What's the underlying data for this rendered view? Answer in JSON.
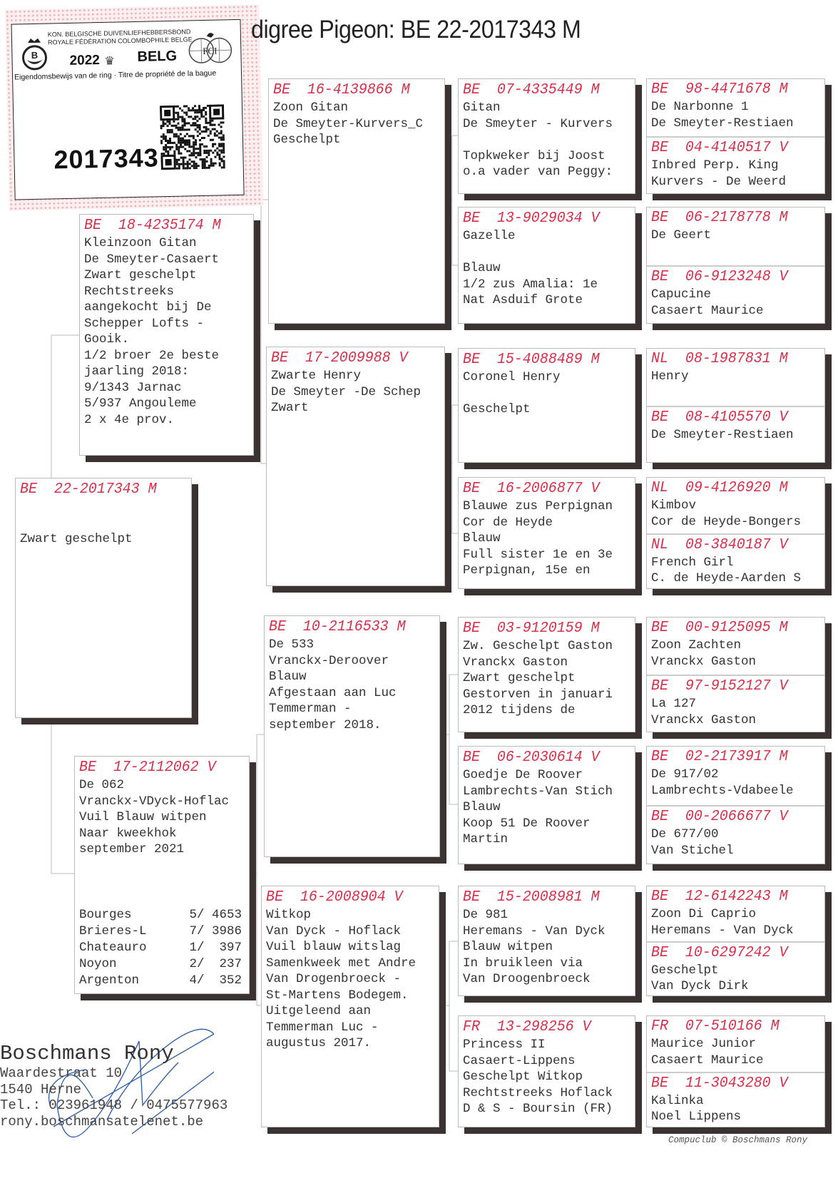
{
  "ring_card": {
    "org_line1": "KON. BELGISCHE DUIVENLIEFHEBBERSBOND",
    "org_line2": "ROYALE FÉDÉRATION COLOMBOPHILE BELGE",
    "year": "2022",
    "country": "BELG",
    "ownership": "Eigendomsbewijs van de ring · Titre de propriété de la bague",
    "ring_number": "2017343",
    "logo_left": "B",
    "logo_right": "FCI"
  },
  "title": "digree Pigeon: BE  22-2017343 M",
  "colors": {
    "ring": "#d6304a",
    "shadow": "#3b3232",
    "signature": "#2a5aa8"
  },
  "subject": {
    "ring": "BE  22-2017343 M",
    "lines": [
      "",
      "",
      "Zwart geschelpt"
    ]
  },
  "sire": {
    "ring": "BE  18-4235174 M",
    "lines": [
      "Kleinzoon Gitan",
      "De Smeyter-Casaert",
      "Zwart geschelpt",
      "Rechtstreeks",
      "aangekocht bij De",
      "Schepper Lofts -",
      "Gooik.",
      "1/2 broer 2e beste",
      "jaarling 2018:",
      "9/1343 Jarnac",
      "5/937 Angouleme",
      "2 x 4e prov."
    ]
  },
  "dam": {
    "ring": "BE  17-2112062 V",
    "lines": [
      "De 062",
      "Vranckx-VDyck-Hoflac",
      "Vuil Blauw witpen",
      "Naar kweekhok",
      "september 2021"
    ],
    "results": [
      {
        "race": "Bourges",
        "result": "5/ 4653"
      },
      {
        "race": "Brieres-L",
        "result": "7/ 3986"
      },
      {
        "race": "Chateauro",
        "result": "1/  397"
      },
      {
        "race": "Noyon",
        "result": "2/  237"
      },
      {
        "race": "Argenton",
        "result": "4/  352"
      }
    ]
  },
  "gen2": [
    {
      "ring": "BE  16-4139866 M",
      "lines": [
        "Zoon Gitan",
        "De Smeyter-Kurvers_C",
        "Geschelpt"
      ]
    },
    {
      "ring": "BE  17-2009988 V",
      "lines": [
        "Zwarte Henry",
        "De Smeyter -De Schep",
        "Zwart"
      ]
    },
    {
      "ring": "BE  10-2116533 M",
      "lines": [
        "De 533",
        "Vranckx-Deroover",
        "Blauw",
        "Afgestaan aan Luc",
        "Temmerman -",
        "september 2018."
      ]
    },
    {
      "ring": "BE  16-2008904 V",
      "lines": [
        "Witkop",
        "Van Dyck - Hoflack",
        "Vuil blauw witslag",
        "Samenkweek met Andre",
        "Van Drogenbroeck -",
        "St-Martens Bodegem.",
        "Uitgeleend aan",
        "Temmerman Luc -",
        "augustus 2017."
      ]
    }
  ],
  "gen3": [
    {
      "ring": "BE  07-4335449 M",
      "lines": [
        "Gitan",
        "De Smeyter - Kurvers",
        "",
        "Topkweker bij Joost",
        "o.a vader van Peggy:"
      ]
    },
    {
      "ring": "BE  13-9029034 V",
      "lines": [
        "Gazelle",
        "",
        "Blauw",
        "1/2 zus Amalia: 1e",
        "Nat Asduif Grote"
      ]
    },
    {
      "ring": "BE  15-4088489 M",
      "lines": [
        "Coronel Henry",
        "",
        "Geschelpt"
      ]
    },
    {
      "ring": "BE  16-2006877 V",
      "lines": [
        "Blauwe zus Perpignan",
        "Cor de Heyde",
        "Blauw",
        "Full sister 1e en 3e",
        "Perpignan, 15e en"
      ]
    },
    {
      "ring": "BE  03-9120159 M",
      "lines": [
        "Zw. Geschelpt Gaston",
        "Vranckx Gaston",
        "Zwart geschelpt",
        "Gestorven in januari",
        "2012 tijdens de"
      ]
    },
    {
      "ring": "BE  06-2030614 V",
      "lines": [
        "Goedje De Roover",
        "Lambrechts-Van Stich",
        "Blauw",
        "Koop 51 De Roover",
        "Martin"
      ]
    },
    {
      "ring": "BE  15-2008981 M",
      "lines": [
        "De 981",
        "Heremans - Van Dyck",
        "Blauw witpen",
        "In bruikleen via",
        "Van Droogenbroeck"
      ]
    },
    {
      "ring": "FR  13-298256 V",
      "lines": [
        "Princess II",
        "Casaert-Lippens",
        "Geschelpt Witkop",
        "Rechtstreeks Hoflack",
        "D & S - Boursin (FR)"
      ]
    }
  ],
  "gen4": [
    {
      "top": {
        "ring": "BE  98-4471678 M",
        "lines": [
          "De Narbonne 1",
          "De Smeyter-Restiaen"
        ]
      },
      "bottom": {
        "ring": "BE  04-4140517 V",
        "lines": [
          "Inbred Perp. King",
          "Kurvers - De Weerd"
        ]
      }
    },
    {
      "top": {
        "ring": "BE  06-2178778 M",
        "lines": [
          "De Geert"
        ]
      },
      "bottom": {
        "ring": "BE  06-9123248 V",
        "lines": [
          "Capucine",
          "Casaert Maurice"
        ]
      }
    },
    {
      "top": {
        "ring": "NL  08-1987831 M",
        "lines": [
          "Henry"
        ]
      },
      "bottom": {
        "ring": "BE  08-4105570 V",
        "lines": [
          "De Smeyter-Restiaen"
        ]
      }
    },
    {
      "top": {
        "ring": "NL  09-4126920 M",
        "lines": [
          "Kimbov",
          "Cor de Heyde-Bongers"
        ]
      },
      "bottom": {
        "ring": "NL  08-3840187 V",
        "lines": [
          "French Girl",
          "C. de Heyde-Aarden S"
        ]
      }
    },
    {
      "top": {
        "ring": "BE  00-9125095 M",
        "lines": [
          "Zoon Zachten",
          "Vranckx Gaston"
        ]
      },
      "bottom": {
        "ring": "BE  97-9152127 V",
        "lines": [
          "La 127",
          "Vranckx Gaston"
        ]
      }
    },
    {
      "top": {
        "ring": "BE  02-2173917 M",
        "lines": [
          "De 917/02",
          "Lambrechts-Vdabeele"
        ]
      },
      "bottom": {
        "ring": "BE  00-2066677 V",
        "lines": [
          "De 677/00",
          "Van Stichel"
        ]
      }
    },
    {
      "top": {
        "ring": "BE  12-6142243 M",
        "lines": [
          "Zoon Di Caprio",
          "Heremans - Van Dyck"
        ]
      },
      "bottom": {
        "ring": "BE  10-6297242 V",
        "lines": [
          "Geschelpt",
          "Van Dyck Dirk"
        ]
      }
    },
    {
      "top": {
        "ring": "FR  07-510166 M",
        "lines": [
          "Maurice Junior",
          "Casaert Maurice"
        ]
      },
      "bottom": {
        "ring": "BE  11-3043280 V",
        "lines": [
          "Kalinka",
          "Noel Lippens"
        ]
      }
    }
  ],
  "owner": {
    "name": "Boschmans Rony",
    "street": "Waardestraat 10",
    "city": "1540  Herne",
    "phone": "Tel.: 023961948 / 0475577963",
    "email": "rony.boschmansatelenet.be"
  },
  "footer": "Compuclub © Boschmans Rony"
}
